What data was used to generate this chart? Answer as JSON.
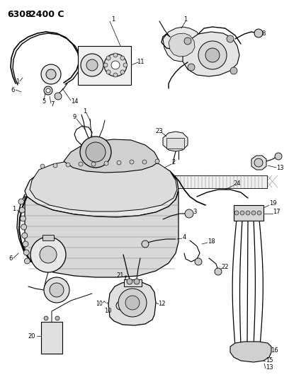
{
  "title_part1": "6308",
  "title_part2": "2400 C",
  "title_fontsize": 9,
  "title_fontweight": "bold",
  "background_color": "#ffffff",
  "text_color": "#000000",
  "line_color": "#000000",
  "fig_width": 4.08,
  "fig_height": 5.33,
  "dpi": 100,
  "label_fontsize": 6.0
}
